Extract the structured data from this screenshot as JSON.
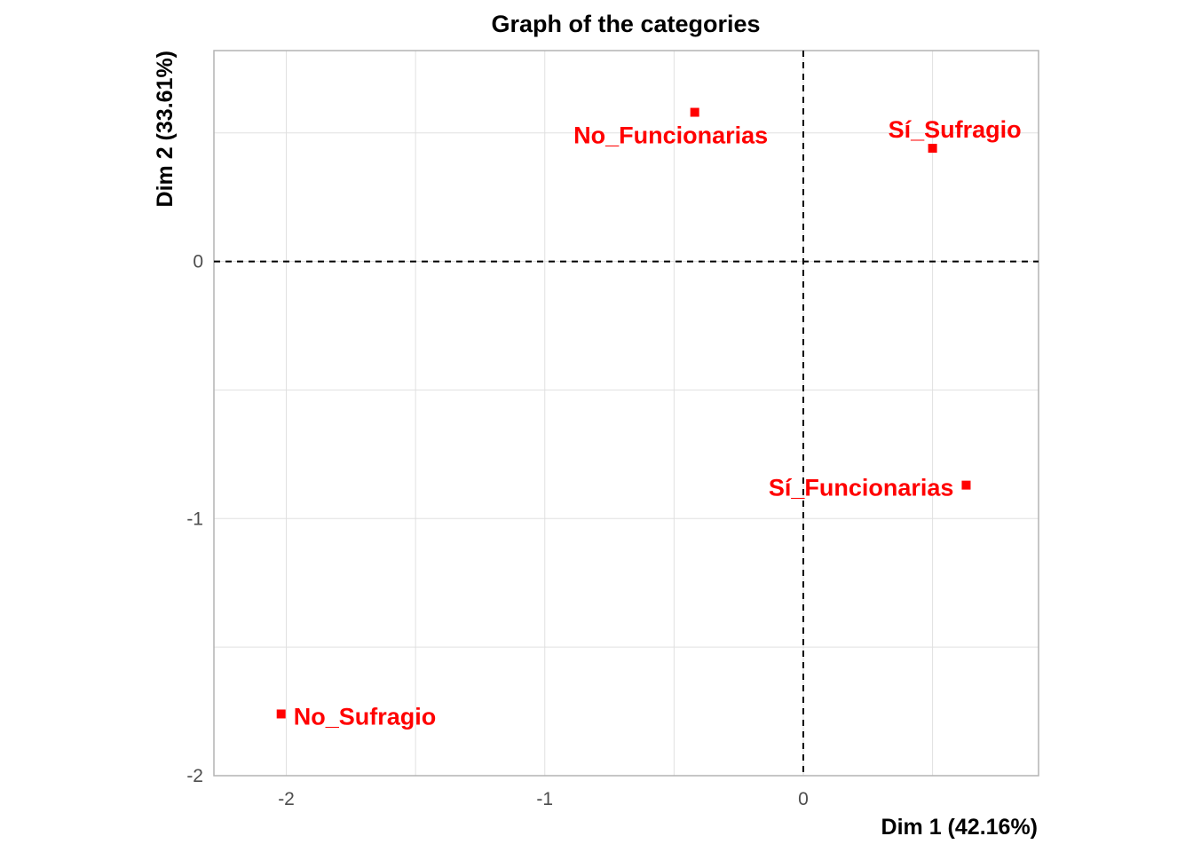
{
  "chart_data": {
    "type": "scatter",
    "title": "Graph of the categories",
    "xlabel": "Dim 1 (42.16%)",
    "ylabel": "Dim 2 (33.61%)",
    "xlim": [
      -2.28,
      0.91
    ],
    "ylim": [
      -2.0,
      0.82
    ],
    "xticks": [
      -2,
      -1,
      0
    ],
    "yticks": [
      -2,
      -1,
      0
    ],
    "grid": true,
    "reference_lines": {
      "x": 0,
      "y": 0,
      "style": "dashed"
    },
    "point_color": "#ff0000",
    "points": [
      {
        "label": "No_Funcionarias",
        "x": -0.42,
        "y": 0.58
      },
      {
        "label": "Sí_Sufragio",
        "x": 0.5,
        "y": 0.44
      },
      {
        "label": "Sí_Funcionarias",
        "x": 0.63,
        "y": -0.87
      },
      {
        "label": "No_Sufragio",
        "x": -2.02,
        "y": -1.76
      }
    ]
  }
}
